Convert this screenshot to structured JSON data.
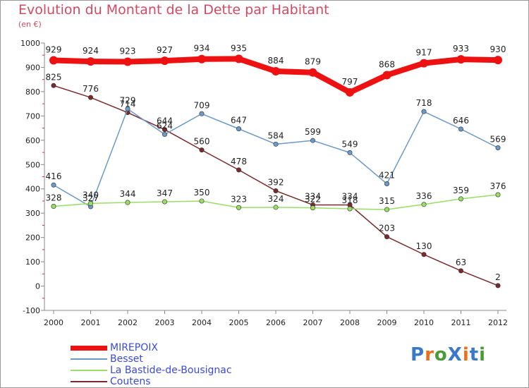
{
  "title": "Evolution du Montant de la Dette par Habitant",
  "subtitle": "(en €)",
  "logo_text": "ProXiti",
  "logo_colors": [
    "#3b78c8",
    "#e8701c",
    "#4a9a3a",
    "#3b78c8",
    "#e8701c",
    "#3b78c8",
    "#4a9a3a"
  ],
  "chart_data": {
    "type": "line",
    "x": [
      "2000",
      "2001",
      "2002",
      "2003",
      "2004",
      "2005",
      "2006",
      "2007",
      "2008",
      "2009",
      "2010",
      "2011",
      "2012"
    ],
    "ylim": [
      -100,
      1000
    ],
    "yticks": [
      "-100",
      "0",
      "100",
      "200",
      "300",
      "400",
      "500",
      "600",
      "700",
      "800",
      "900",
      "1000"
    ],
    "grid": false,
    "legend_position": "bottom-left",
    "series": [
      {
        "name": "MIREPOIX",
        "color": "#ee1111",
        "values": [
          929,
          924,
          923,
          927,
          934,
          935,
          884,
          879,
          797,
          868,
          917,
          933,
          930
        ]
      },
      {
        "name": "Besset",
        "color": "#6b9ac8",
        "values": [
          416,
          327,
          729,
          624,
          709,
          647,
          584,
          599,
          549,
          421,
          718,
          646,
          569
        ]
      },
      {
        "name": "La Bastide-de-Bousignac",
        "color": "#99dd66",
        "values": [
          328,
          340,
          344,
          347,
          350,
          323,
          324,
          322,
          318,
          315,
          336,
          359,
          376
        ]
      },
      {
        "name": "Coutens",
        "color": "#7a2a2a",
        "values": [
          825,
          776,
          714,
          644,
          560,
          478,
          392,
          334,
          334,
          203,
          130,
          63,
          2
        ]
      }
    ]
  }
}
